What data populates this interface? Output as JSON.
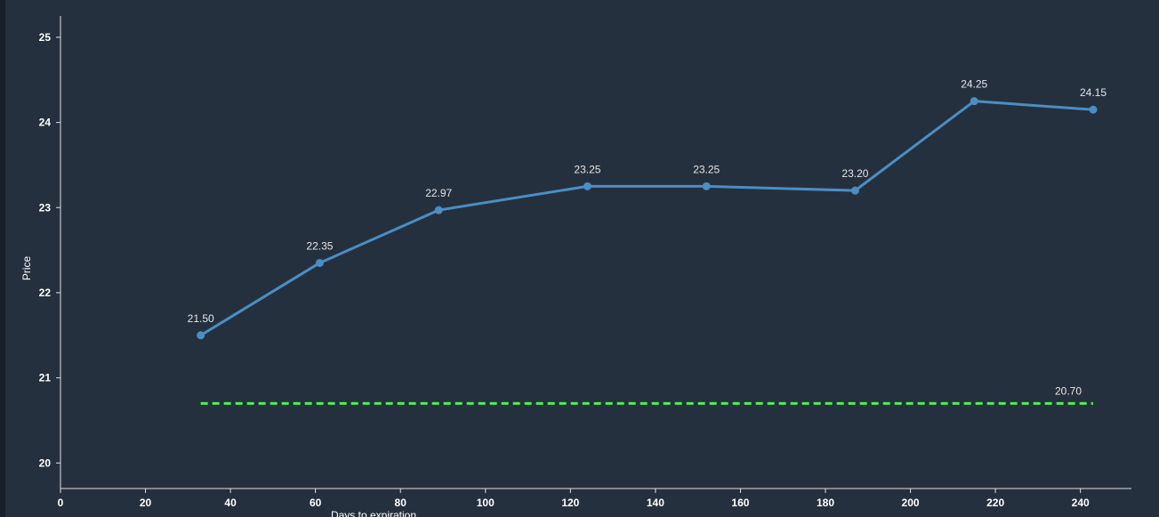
{
  "chart_data": {
    "type": "line",
    "xlabel": "Days to expiration",
    "ylabel": "Price",
    "xlim": [
      0,
      252
    ],
    "ylim": [
      19.7,
      25.25
    ],
    "xticks": [
      0,
      20,
      40,
      60,
      80,
      100,
      120,
      140,
      160,
      180,
      200,
      220,
      240
    ],
    "yticks": [
      20,
      21,
      22,
      23,
      24,
      25
    ],
    "grid": false,
    "series": [
      {
        "color": "#4a8ec4",
        "x": [
          33,
          61,
          89,
          124,
          152,
          187,
          215,
          243
        ],
        "y": [
          21.5,
          22.35,
          22.97,
          23.25,
          23.25,
          23.2,
          24.25,
          24.15
        ],
        "labels": [
          "21.50",
          "22.35",
          "22.97",
          "23.25",
          "23.25",
          "23.20",
          "24.25",
          "24.15"
        ]
      }
    ],
    "reference_line": {
      "value": 20.7,
      "label": "20.70",
      "x_start": 33,
      "x_end": 243,
      "color": "#4ef04e",
      "style": "dashed"
    }
  }
}
